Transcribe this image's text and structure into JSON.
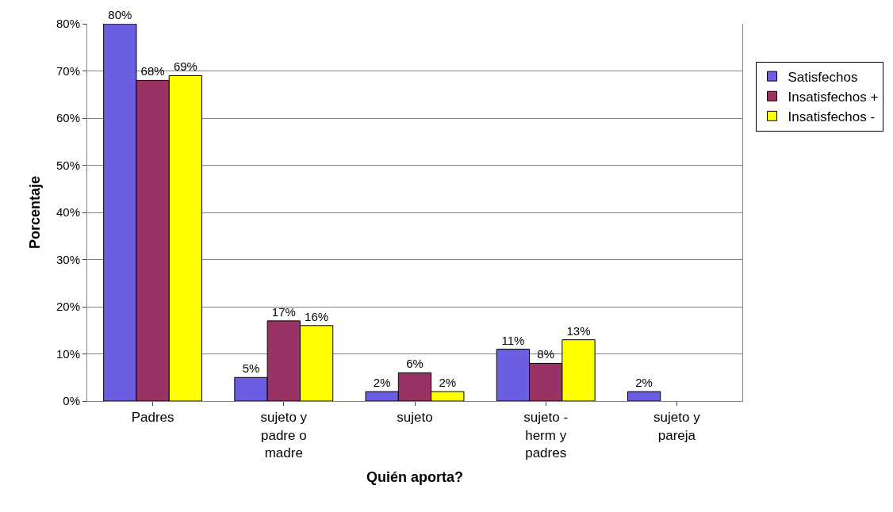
{
  "chart_data": {
    "type": "bar",
    "xlabel": "Quién aporta?",
    "ylabel": "Porcentaje",
    "categories": [
      "Padres",
      "sujeto y padre o madre",
      "sujeto",
      "sujeto - herm y padres",
      "sujeto y pareja"
    ],
    "series": [
      {
        "name": "Satisfechos",
        "color": "#6a5fe0",
        "values": [
          80,
          5,
          2,
          11,
          2
        ],
        "value_labels": [
          "80%",
          "5%",
          "2%",
          "11%",
          "2%"
        ]
      },
      {
        "name": "Insatisfechos +",
        "color": "#993366",
        "values": [
          68,
          17,
          6,
          8,
          null
        ],
        "value_labels": [
          "68%",
          "17%",
          "6%",
          "8%",
          null
        ]
      },
      {
        "name": "Insatisfechos -",
        "color": "#ffff00",
        "values": [
          69,
          16,
          2,
          13,
          null
        ],
        "value_labels": [
          "69%",
          "16%",
          "2%",
          "13%",
          null
        ]
      }
    ],
    "ylim": [
      0,
      80
    ],
    "yticks": [
      {
        "value": 0,
        "label": "0%"
      },
      {
        "value": 10,
        "label": "10%"
      },
      {
        "value": 20,
        "label": "20%"
      },
      {
        "value": 30,
        "label": "30%"
      },
      {
        "value": 40,
        "label": "40%"
      },
      {
        "value": 50,
        "label": "50%"
      },
      {
        "value": 60,
        "label": "60%"
      },
      {
        "value": 70,
        "label": "70%"
      },
      {
        "value": 80,
        "label": "80%"
      }
    ],
    "grid": "y",
    "legend": "right"
  }
}
